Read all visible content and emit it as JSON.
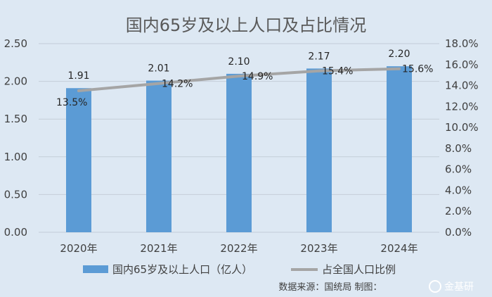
{
  "chart_data": {
    "type": "bar",
    "title": "国内65岁及以上人口及占比情况",
    "categories": [
      "2020年",
      "2021年",
      "2022年",
      "2023年",
      "2024年"
    ],
    "series": [
      {
        "name": "国内65岁及以上人口（亿人）",
        "type": "bar",
        "axis": "left",
        "values": [
          1.91,
          2.01,
          2.1,
          2.17,
          2.2
        ],
        "labels": [
          "1.91",
          "2.01",
          "2.10",
          "2.17",
          "2.20"
        ],
        "color": "#5b9bd5"
      },
      {
        "name": "占全国人口比例",
        "type": "line",
        "axis": "right",
        "values": [
          13.5,
          14.2,
          14.9,
          15.4,
          15.6
        ],
        "labels": [
          "13.5%",
          "14.2%",
          "14.9%",
          "15.4%",
          "15.6%"
        ],
        "color": "#a5a5a5"
      }
    ],
    "ylim_left": [
      0,
      2.5
    ],
    "yticks_left": [
      "0.00",
      "0.50",
      "1.00",
      "1.50",
      "2.00",
      "2.50"
    ],
    "ylim_right": [
      0,
      18
    ],
    "yticks_right": [
      "0.0%",
      "2.0%",
      "4.0%",
      "6.0%",
      "8.0%",
      "10.0%",
      "12.0%",
      "14.0%",
      "16.0%",
      "18.0%"
    ],
    "grid": true,
    "legend_position": "bottom"
  },
  "source": "数据来源：国统局  制图：",
  "watermark": "金基研"
}
